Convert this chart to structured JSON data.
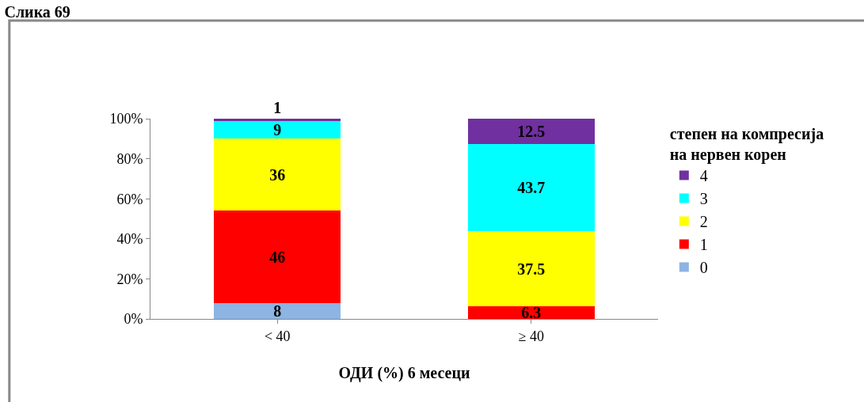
{
  "chart_data": {
    "type": "bar",
    "title": "Слика 69",
    "xlabel": "ОДИ (%) 6 месеци",
    "legend_title": "степен на компресија\nна нервен корен",
    "categories": [
      "< 40",
      "≥ 40"
    ],
    "stacked": true,
    "series": [
      {
        "name": "0",
        "color": "#8db4e2",
        "values": [
          8,
          0
        ],
        "value_labels": [
          "8",
          null
        ]
      },
      {
        "name": "1",
        "color": "#ff0000",
        "values": [
          46,
          6.3
        ],
        "value_labels": [
          "46",
          "6.3"
        ]
      },
      {
        "name": "2",
        "color": "#ffff00",
        "values": [
          36,
          37.5
        ],
        "value_labels": [
          "36",
          "37.5"
        ]
      },
      {
        "name": "3",
        "color": "#00ffff",
        "values": [
          9,
          43.7
        ],
        "value_labels": [
          "9",
          "43.7"
        ]
      },
      {
        "name": "4",
        "color": "#7030a0",
        "values": [
          1,
          12.5
        ],
        "value_labels": [
          "1",
          "12.5"
        ]
      }
    ],
    "ylim": [
      0,
      100
    ],
    "yticks": [
      {
        "value": 0,
        "label": "0%"
      },
      {
        "value": 20,
        "label": "20%"
      },
      {
        "value": 40,
        "label": "40%"
      },
      {
        "value": 60,
        "label": "60%"
      },
      {
        "value": 80,
        "label": "80%"
      },
      {
        "value": 100,
        "label": "100%"
      }
    ],
    "grid": false,
    "legend": "right"
  }
}
